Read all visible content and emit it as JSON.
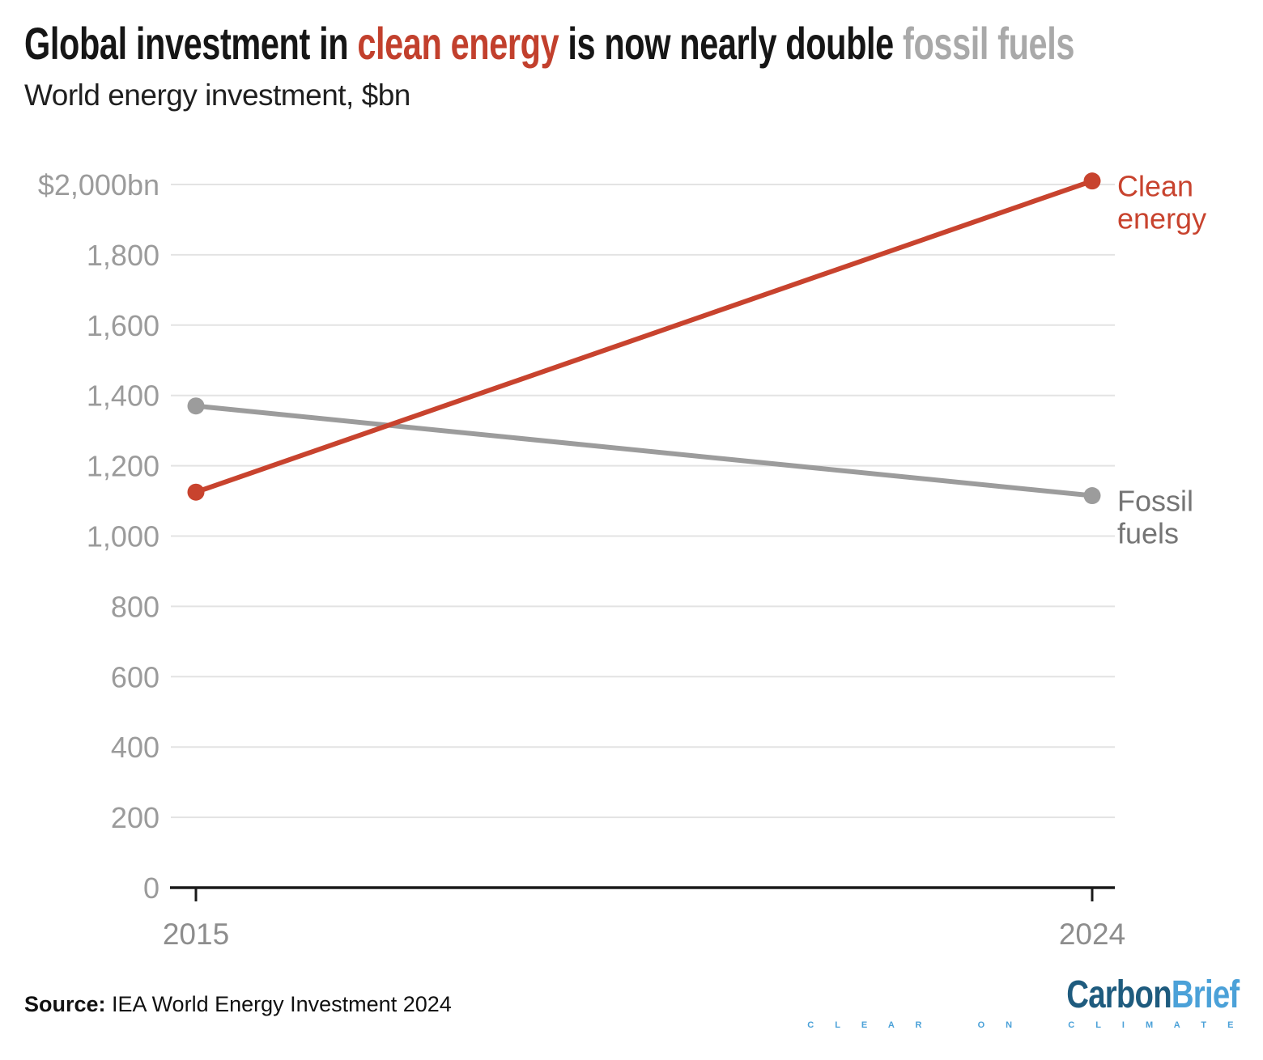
{
  "header": {
    "title_parts": [
      {
        "text": "Global investment in ",
        "color": "#161616"
      },
      {
        "text": "clean energy",
        "color": "#c2402d"
      },
      {
        "text": " is now nearly double ",
        "color": "#161616"
      },
      {
        "text": "fossil fuels",
        "color": "#a9a9a9"
      }
    ],
    "subtitle": "World energy investment, $bn"
  },
  "chart_data": {
    "type": "line",
    "title": "Global investment in clean energy is now nearly double fossil fuels",
    "subtitle": "World energy investment, $bn",
    "x": [
      2015,
      2024
    ],
    "xtick_labels": [
      "2015",
      "2024"
    ],
    "series": [
      {
        "name": "Fossil fuels",
        "values": [
          1370,
          1115
        ],
        "color": "#9c9c9c",
        "label_color": "#757575",
        "label_lines": [
          "Fossil",
          "fuels"
        ]
      },
      {
        "name": "Clean energy",
        "values": [
          1125,
          2010
        ],
        "color": "#c8432e",
        "label_color": "#c8432e",
        "label_lines": [
          "Clean",
          "energy"
        ]
      }
    ],
    "ylim": [
      0,
      2000
    ],
    "yticks": [
      {
        "value": 0,
        "label": "0"
      },
      {
        "value": 200,
        "label": "200"
      },
      {
        "value": 400,
        "label": "400"
      },
      {
        "value": 600,
        "label": "600"
      },
      {
        "value": 800,
        "label": "800"
      },
      {
        "value": 1000,
        "label": "1,000"
      },
      {
        "value": 1200,
        "label": "1,200"
      },
      {
        "value": 1400,
        "label": "1,400"
      },
      {
        "value": 1600,
        "label": "1,600"
      },
      {
        "value": 1800,
        "label": "1,800"
      },
      {
        "value": 2000,
        "label": "$2,000bn"
      }
    ],
    "grid": "horizontal-only",
    "legend_position": "labels-right-of-line-ends"
  },
  "footer": {
    "source_label": "Source:",
    "source_text": " IEA World Energy Investment 2024",
    "logo": {
      "part1": "Carbon",
      "part2": "Brief",
      "tagline": "C L E A R   O N   C L I M A T E",
      "color1": "#1e5b7e",
      "color2": "#4ba1d8"
    }
  }
}
